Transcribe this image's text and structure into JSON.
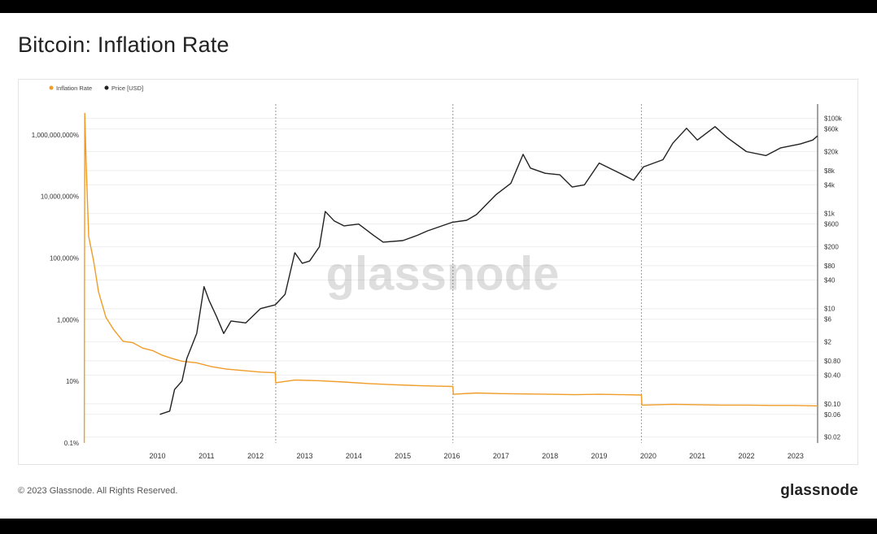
{
  "page": {
    "title": "Bitcoin: Inflation Rate",
    "copyright": "© 2023 Glassnode. All Rights Reserved.",
    "brand": "glassnode",
    "watermark": "glassnode"
  },
  "colors": {
    "inflation": "#f09c28",
    "price": "#222222",
    "grid": "#eeeeee"
  },
  "chart_data": {
    "type": "line",
    "title": "Bitcoin: Inflation Rate",
    "legend": [
      {
        "name": "Inflation Rate",
        "color": "#f09c28"
      },
      {
        "name": "Price [USD]",
        "color": "#222222"
      }
    ],
    "x_ticks": [
      "2010",
      "2011",
      "2012",
      "2013",
      "2014",
      "2015",
      "2016",
      "2017",
      "2018",
      "2019",
      "2020",
      "2021",
      "2022",
      "2023"
    ],
    "x_range": [
      2009.0,
      2023.95
    ],
    "halvings": [
      2012.91,
      2016.52,
      2020.36
    ],
    "y_left": {
      "scale": "log",
      "range_pct": [
        0.1,
        10000000000
      ],
      "tick_labels": [
        "1,000,000,000%",
        "10,000,000%",
        "100,000%",
        "1,000%",
        "10%",
        "0.1%"
      ],
      "tick_values": [
        1000000000,
        10000000,
        100000,
        1000,
        10,
        0.1
      ]
    },
    "y_right": {
      "scale": "log",
      "range_usd": [
        0.015,
        200000
      ],
      "tick_labels": [
        "$100k",
        "$60k",
        "$20k",
        "$8k",
        "$4k",
        "$1k",
        "$600",
        "$200",
        "$80",
        "$40",
        "$10",
        "$6",
        "$2",
        "$0.80",
        "$0.40",
        "$0.10",
        "$0.06",
        "$0.02"
      ],
      "tick_values": [
        100000,
        60000,
        20000,
        8000,
        4000,
        1000,
        600,
        200,
        80,
        40,
        10,
        6,
        2,
        0.8,
        0.4,
        0.1,
        0.06,
        0.02
      ]
    },
    "series": [
      {
        "name": "Inflation Rate",
        "axis": "left",
        "points": [
          [
            2009.01,
            0.1
          ],
          [
            2009.02,
            5000000000
          ],
          [
            2009.05,
            100000000
          ],
          [
            2009.1,
            500000
          ],
          [
            2009.2,
            80000
          ],
          [
            2009.3,
            8000
          ],
          [
            2009.45,
            1200
          ],
          [
            2009.6,
            500
          ],
          [
            2009.8,
            200
          ],
          [
            2010.0,
            180
          ],
          [
            2010.2,
            120
          ],
          [
            2010.4,
            100
          ],
          [
            2010.6,
            70
          ],
          [
            2010.8,
            55
          ],
          [
            2011.0,
            45
          ],
          [
            2011.3,
            40
          ],
          [
            2011.6,
            30
          ],
          [
            2011.9,
            25
          ],
          [
            2012.3,
            22
          ],
          [
            2012.6,
            20
          ],
          [
            2012.9,
            19
          ],
          [
            2012.91,
            9
          ],
          [
            2013.3,
            11
          ],
          [
            2013.8,
            10.5
          ],
          [
            2014.3,
            9.5
          ],
          [
            2014.8,
            8.5
          ],
          [
            2015.3,
            7.8
          ],
          [
            2015.8,
            7.3
          ],
          [
            2016.2,
            7
          ],
          [
            2016.52,
            6.8
          ],
          [
            2016.53,
            3.8
          ],
          [
            2017.0,
            4.2
          ],
          [
            2017.5,
            4.0
          ],
          [
            2018.0,
            3.9
          ],
          [
            2018.5,
            3.8
          ],
          [
            2019.0,
            3.7
          ],
          [
            2019.5,
            3.8
          ],
          [
            2020.0,
            3.7
          ],
          [
            2020.36,
            3.6
          ],
          [
            2020.37,
            1.7
          ],
          [
            2021.0,
            1.8
          ],
          [
            2021.5,
            1.75
          ],
          [
            2022.0,
            1.7
          ],
          [
            2022.5,
            1.7
          ],
          [
            2023.0,
            1.65
          ],
          [
            2023.5,
            1.65
          ],
          [
            2023.95,
            1.6
          ]
        ]
      },
      {
        "name": "Price [USD]",
        "axis": "right",
        "points": [
          [
            2010.55,
            0.06
          ],
          [
            2010.75,
            0.07
          ],
          [
            2010.85,
            0.2
          ],
          [
            2011.0,
            0.3
          ],
          [
            2011.1,
            0.9
          ],
          [
            2011.3,
            3
          ],
          [
            2011.45,
            29
          ],
          [
            2011.55,
            15
          ],
          [
            2011.7,
            7
          ],
          [
            2011.85,
            3
          ],
          [
            2012.0,
            5.5
          ],
          [
            2012.3,
            5
          ],
          [
            2012.6,
            10
          ],
          [
            2012.9,
            12
          ],
          [
            2013.1,
            20
          ],
          [
            2013.3,
            150
          ],
          [
            2013.45,
            90
          ],
          [
            2013.6,
            100
          ],
          [
            2013.8,
            200
          ],
          [
            2013.92,
            1100
          ],
          [
            2014.1,
            700
          ],
          [
            2014.3,
            550
          ],
          [
            2014.6,
            600
          ],
          [
            2014.9,
            350
          ],
          [
            2015.1,
            250
          ],
          [
            2015.5,
            270
          ],
          [
            2015.8,
            350
          ],
          [
            2016.0,
            430
          ],
          [
            2016.5,
            650
          ],
          [
            2016.8,
            720
          ],
          [
            2017.0,
            950
          ],
          [
            2017.4,
            2500
          ],
          [
            2017.7,
            4300
          ],
          [
            2017.95,
            17500
          ],
          [
            2018.1,
            9000
          ],
          [
            2018.4,
            7000
          ],
          [
            2018.7,
            6500
          ],
          [
            2018.95,
            3600
          ],
          [
            2019.2,
            4000
          ],
          [
            2019.5,
            11500
          ],
          [
            2019.9,
            7200
          ],
          [
            2020.2,
            5000
          ],
          [
            2020.4,
            9500
          ],
          [
            2020.8,
            13500
          ],
          [
            2021.0,
            30000
          ],
          [
            2021.28,
            62000
          ],
          [
            2021.5,
            35000
          ],
          [
            2021.86,
            67000
          ],
          [
            2022.1,
            40000
          ],
          [
            2022.5,
            20000
          ],
          [
            2022.9,
            16500
          ],
          [
            2023.2,
            24000
          ],
          [
            2023.6,
            29000
          ],
          [
            2023.85,
            35000
          ],
          [
            2023.95,
            43000
          ]
        ]
      }
    ]
  }
}
